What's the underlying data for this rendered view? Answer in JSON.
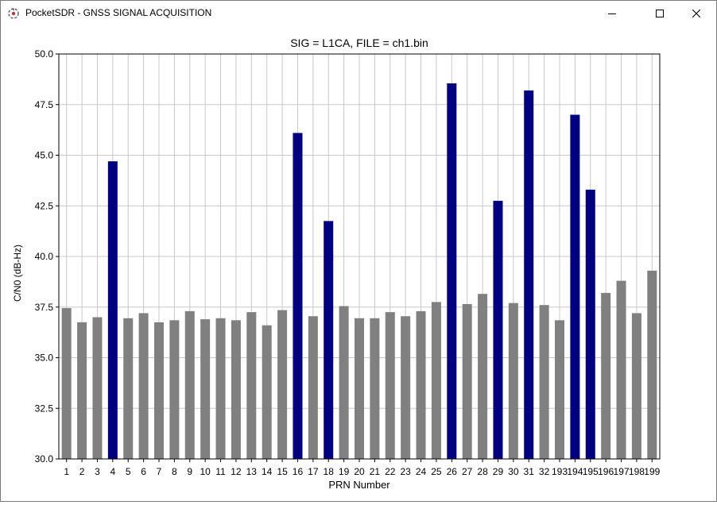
{
  "window": {
    "title": "PocketSDR - GNSS SIGNAL ACQUISITION",
    "icon": "pocketsdr-app-icon",
    "controls": [
      "minimize-icon",
      "maximize-icon",
      "close-icon"
    ]
  },
  "chart_data": {
    "type": "bar",
    "title": "SIG = L1CA, FILE = ch1.bin",
    "xlabel": "PRN Number",
    "ylabel": "C/N0 (dB-Hz)",
    "ylim": [
      30.0,
      50.0
    ],
    "yticks": [
      "30.0",
      "32.5",
      "35.0",
      "37.5",
      "40.0",
      "42.5",
      "45.0",
      "47.5",
      "50.0"
    ],
    "grid": true,
    "categories": [
      "1",
      "2",
      "3",
      "4",
      "5",
      "6",
      "7",
      "8",
      "9",
      "10",
      "11",
      "12",
      "13",
      "14",
      "15",
      "16",
      "17",
      "18",
      "19",
      "20",
      "21",
      "22",
      "23",
      "24",
      "25",
      "26",
      "27",
      "28",
      "29",
      "30",
      "31",
      "32",
      "193",
      "194",
      "195",
      "196",
      "197",
      "198",
      "199"
    ],
    "values": [
      37.45,
      36.75,
      37.0,
      44.7,
      36.95,
      37.2,
      36.75,
      36.85,
      37.3,
      36.9,
      36.95,
      36.85,
      37.25,
      36.6,
      37.35,
      46.1,
      37.05,
      41.75,
      37.55,
      36.95,
      36.95,
      37.25,
      37.05,
      37.3,
      37.75,
      48.55,
      37.65,
      38.15,
      42.75,
      37.7,
      48.2,
      37.6,
      36.85,
      47.0,
      43.3,
      38.2,
      38.8,
      37.2,
      39.3
    ],
    "acquired": [
      false,
      false,
      false,
      true,
      false,
      false,
      false,
      false,
      false,
      false,
      false,
      false,
      false,
      false,
      false,
      true,
      false,
      true,
      false,
      false,
      false,
      false,
      false,
      false,
      false,
      true,
      false,
      false,
      true,
      false,
      true,
      false,
      false,
      true,
      true,
      false,
      false,
      false,
      false
    ],
    "colors": {
      "acquired": "#000080",
      "not_acquired": "#808080",
      "grid": "#c8c8c8",
      "axis": "#000000"
    }
  }
}
